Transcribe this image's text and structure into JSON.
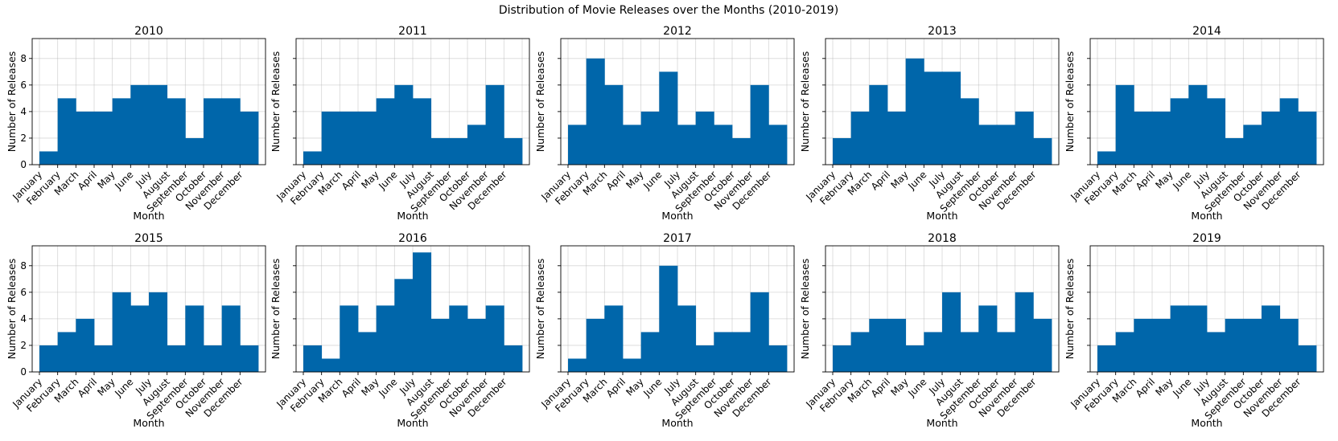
{
  "figure": {
    "title": "Distribution of Movie Releases over the Months (2010-2019)"
  },
  "chart_data": [
    {
      "type": "bar",
      "title": "2010",
      "xlabel": "Month",
      "ylabel": "Number of Releases",
      "ylim": [
        0,
        9.5
      ],
      "yticks": [
        0,
        2,
        4,
        6,
        8
      ],
      "grid": true,
      "categories": [
        "January",
        "February",
        "March",
        "April",
        "May",
        "June",
        "July",
        "August",
        "September",
        "October",
        "November",
        "December"
      ],
      "values": [
        1,
        5,
        4,
        4,
        5,
        6,
        6,
        5,
        2,
        5,
        5,
        4
      ],
      "color": "#0066aa"
    },
    {
      "type": "bar",
      "title": "2011",
      "xlabel": "Month",
      "ylabel": "Number of Releases",
      "ylim": [
        0,
        9.5
      ],
      "yticks": [],
      "grid": true,
      "categories": [
        "January",
        "February",
        "March",
        "April",
        "May",
        "June",
        "July",
        "August",
        "September",
        "October",
        "November",
        "December"
      ],
      "values": [
        1,
        4,
        4,
        4,
        5,
        6,
        5,
        2,
        2,
        3,
        6,
        2
      ],
      "color": "#0066aa"
    },
    {
      "type": "bar",
      "title": "2012",
      "xlabel": "Month",
      "ylabel": "Number of Releases",
      "ylim": [
        0,
        9.5
      ],
      "yticks": [],
      "grid": true,
      "categories": [
        "January",
        "February",
        "March",
        "April",
        "May",
        "June",
        "July",
        "August",
        "September",
        "October",
        "November",
        "December"
      ],
      "values": [
        3,
        8,
        6,
        3,
        4,
        7,
        3,
        4,
        3,
        2,
        6,
        3
      ],
      "color": "#0066aa"
    },
    {
      "type": "bar",
      "title": "2013",
      "xlabel": "Month",
      "ylabel": "Number of Releases",
      "ylim": [
        0,
        9.5
      ],
      "yticks": [],
      "grid": true,
      "categories": [
        "January",
        "February",
        "March",
        "April",
        "May",
        "June",
        "July",
        "August",
        "September",
        "October",
        "November",
        "December"
      ],
      "values": [
        2,
        4,
        6,
        4,
        8,
        7,
        7,
        5,
        3,
        3,
        4,
        2
      ],
      "color": "#0066aa"
    },
    {
      "type": "bar",
      "title": "2014",
      "xlabel": "Month",
      "ylabel": "Number of Releases",
      "ylim": [
        0,
        9.5
      ],
      "yticks": [],
      "grid": true,
      "categories": [
        "January",
        "February",
        "March",
        "April",
        "May",
        "June",
        "July",
        "August",
        "September",
        "October",
        "November",
        "December"
      ],
      "values": [
        1,
        6,
        4,
        4,
        5,
        6,
        5,
        2,
        3,
        4,
        5,
        4
      ],
      "color": "#0066aa"
    },
    {
      "type": "bar",
      "title": "2015",
      "xlabel": "Month",
      "ylabel": "Number of Releases",
      "ylim": [
        0,
        9.5
      ],
      "yticks": [
        0,
        2,
        4,
        6,
        8
      ],
      "grid": true,
      "categories": [
        "January",
        "February",
        "March",
        "April",
        "May",
        "June",
        "July",
        "August",
        "September",
        "October",
        "November",
        "December"
      ],
      "values": [
        2,
        3,
        4,
        2,
        6,
        5,
        6,
        2,
        5,
        2,
        5,
        2
      ],
      "color": "#0066aa"
    },
    {
      "type": "bar",
      "title": "2016",
      "xlabel": "Month",
      "ylabel": "Number of Releases",
      "ylim": [
        0,
        9.5
      ],
      "yticks": [],
      "grid": true,
      "categories": [
        "January",
        "February",
        "March",
        "April",
        "May",
        "June",
        "July",
        "August",
        "September",
        "October",
        "November",
        "December"
      ],
      "values": [
        2,
        1,
        5,
        3,
        5,
        7,
        9,
        4,
        5,
        4,
        5,
        2
      ],
      "color": "#0066aa"
    },
    {
      "type": "bar",
      "title": "2017",
      "xlabel": "Month",
      "ylabel": "Number of Releases",
      "ylim": [
        0,
        9.5
      ],
      "yticks": [],
      "grid": true,
      "categories": [
        "January",
        "February",
        "March",
        "April",
        "May",
        "June",
        "July",
        "August",
        "September",
        "October",
        "November",
        "December"
      ],
      "values": [
        1,
        4,
        5,
        1,
        3,
        8,
        5,
        2,
        3,
        3,
        6,
        2
      ],
      "color": "#0066aa"
    },
    {
      "type": "bar",
      "title": "2018",
      "xlabel": "Month",
      "ylabel": "Number of Releases",
      "ylim": [
        0,
        9.5
      ],
      "yticks": [],
      "grid": true,
      "categories": [
        "January",
        "February",
        "March",
        "April",
        "May",
        "June",
        "July",
        "August",
        "September",
        "October",
        "November",
        "December"
      ],
      "values": [
        2,
        3,
        4,
        4,
        2,
        3,
        6,
        3,
        5,
        3,
        6,
        4
      ],
      "color": "#0066aa"
    },
    {
      "type": "bar",
      "title": "2019",
      "xlabel": "Month",
      "ylabel": "Number of Releases",
      "ylim": [
        0,
        9.5
      ],
      "yticks": [],
      "grid": true,
      "categories": [
        "January",
        "February",
        "March",
        "April",
        "May",
        "June",
        "July",
        "August",
        "September",
        "October",
        "November",
        "December"
      ],
      "values": [
        2,
        3,
        4,
        4,
        5,
        5,
        3,
        4,
        4,
        5,
        4,
        2
      ],
      "color": "#0066aa"
    }
  ]
}
